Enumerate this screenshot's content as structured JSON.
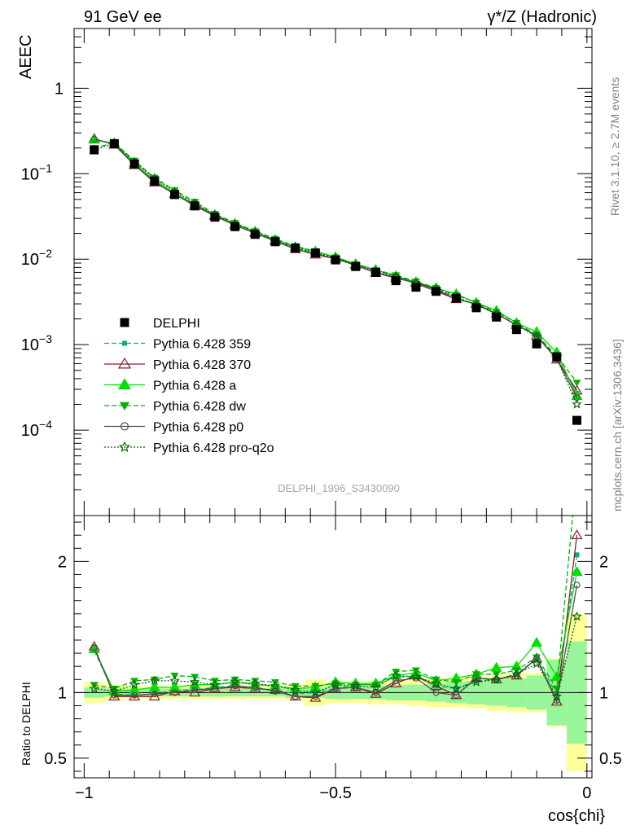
{
  "header": {
    "left": "91 GeV ee",
    "right": "γ*/Z (Hadronic)"
  },
  "side": {
    "upper": "Rivet 3.1.10, ≥ 2.7M events",
    "lower": "mcplots.cern.ch [arXiv:1306.3436]"
  },
  "analysis_label": "DELPHI_1996_S3430090",
  "chart_data": [
    {
      "type": "line",
      "panel": "main",
      "ylabel": "AEEC",
      "yscale": "log",
      "xlim": [
        -1.02,
        0.01
      ],
      "ylim": [
        1e-05,
        5
      ],
      "y_ticks": [
        "10^-4",
        "10^-3",
        "10^-2",
        "10^-1",
        "1"
      ],
      "legend_position": "left-middle",
      "x": [
        -0.98,
        -0.94,
        -0.9,
        -0.86,
        -0.82,
        -0.78,
        -0.74,
        -0.7,
        -0.66,
        -0.62,
        -0.58,
        -0.54,
        -0.5,
        -0.46,
        -0.42,
        -0.38,
        -0.34,
        -0.3,
        -0.26,
        -0.22,
        -0.18,
        -0.14,
        -0.1,
        -0.06,
        -0.02
      ],
      "data": {
        "name": "DELPHI",
        "values": [
          0.19,
          0.225,
          0.13,
          0.082,
          0.057,
          0.042,
          0.031,
          0.024,
          0.0195,
          0.016,
          0.0135,
          0.0118,
          0.0098,
          0.0082,
          0.007,
          0.0056,
          0.0047,
          0.0042,
          0.0035,
          0.0027,
          0.0021,
          0.0015,
          0.00102,
          0.00072,
          0.00013
        ]
      },
      "series": [
        {
          "name": "Pythia 6.428 359",
          "color": "#00b27a",
          "dash": "6,3",
          "marker": "square-small",
          "values": [
            0.25,
            0.225,
            0.128,
            0.081,
            0.058,
            0.043,
            0.032,
            0.025,
            0.02,
            0.0163,
            0.0134,
            0.0118,
            0.0101,
            0.0087,
            0.0074,
            0.0063,
            0.0053,
            0.0044,
            0.0036,
            0.0029,
            0.0023,
            0.0017,
            0.0013,
            0.0007,
            0.00027
          ]
        },
        {
          "name": "Pythia 6.428 370",
          "color": "#8b1c2c",
          "dash": "",
          "marker": "triangle-open",
          "values": [
            0.257,
            0.218,
            0.126,
            0.079,
            0.058,
            0.042,
            0.032,
            0.025,
            0.0202,
            0.0163,
            0.0131,
            0.0113,
            0.0101,
            0.0085,
            0.0069,
            0.006,
            0.0053,
            0.0044,
            0.0034,
            0.003,
            0.0023,
            0.0017,
            0.00128,
            0.00067,
            0.00029
          ]
        },
        {
          "name": "Pythia 6.428 a",
          "color": "#00e000",
          "dash": "",
          "marker": "triangle-up",
          "values": [
            0.25,
            0.228,
            0.133,
            0.085,
            0.059,
            0.044,
            0.033,
            0.026,
            0.021,
            0.0168,
            0.0139,
            0.0123,
            0.0106,
            0.0088,
            0.0075,
            0.0063,
            0.0054,
            0.0046,
            0.0039,
            0.0031,
            0.0025,
            0.0018,
            0.00141,
            0.00081,
            0.00025
          ]
        },
        {
          "name": "Pythia 6.428 dw",
          "color": "#00b000",
          "dash": "6,3",
          "marker": "triangle-down",
          "values": [
            0.2,
            0.23,
            0.142,
            0.09,
            0.064,
            0.047,
            0.034,
            0.0265,
            0.0213,
            0.0173,
            0.0142,
            0.0124,
            0.0105,
            0.0087,
            0.0075,
            0.0065,
            0.0055,
            0.0046,
            0.0038,
            0.0031,
            0.0024,
            0.0018,
            0.0013,
            0.00074,
            0.00036
          ]
        },
        {
          "name": "Pythia 6.428 p0",
          "color": "#505050",
          "dash": "",
          "marker": "circle-open",
          "values": [
            0.253,
            0.22,
            0.127,
            0.081,
            0.057,
            0.043,
            0.032,
            0.025,
            0.0202,
            0.0162,
            0.0131,
            0.0115,
            0.0101,
            0.0085,
            0.007,
            0.0061,
            0.0052,
            0.0042,
            0.0034,
            0.003,
            0.0023,
            0.0017,
            0.00128,
            0.00068,
            0.00024
          ]
        },
        {
          "name": "Pythia 6.428 pro-q2o",
          "color": "#006400",
          "dash": "2,2",
          "marker": "star",
          "values": [
            0.19,
            0.225,
            0.138,
            0.089,
            0.062,
            0.045,
            0.033,
            0.026,
            0.0208,
            0.0168,
            0.0137,
            0.0118,
            0.0104,
            0.0086,
            0.0073,
            0.0063,
            0.0053,
            0.0045,
            0.0036,
            0.0029,
            0.0023,
            0.0017,
            0.00124,
            0.00069,
            0.0002
          ]
        }
      ]
    },
    {
      "type": "line",
      "panel": "ratio",
      "ylabel": "Ratio to DELPHI",
      "xlabel": "cos{chi}",
      "xlim": [
        -1.02,
        0.01
      ],
      "ylim": [
        0.35,
        2.35
      ],
      "x_ticks": [
        -1,
        -0.5,
        0
      ],
      "x_tick_labels": [
        "−1",
        "−0.5",
        "0"
      ],
      "y_ticks": [
        0.5,
        1,
        2
      ],
      "y_tick_labels": [
        "0.5",
        "1",
        "2"
      ],
      "x": [
        -0.98,
        -0.94,
        -0.9,
        -0.86,
        -0.82,
        -0.78,
        -0.74,
        -0.7,
        -0.66,
        -0.62,
        -0.58,
        -0.54,
        -0.5,
        -0.46,
        -0.42,
        -0.38,
        -0.34,
        -0.3,
        -0.26,
        -0.22,
        -0.18,
        -0.14,
        -0.1,
        -0.06,
        -0.02
      ],
      "band_inner": [
        0.04,
        0.03,
        0.03,
        0.03,
        0.03,
        0.03,
        0.03,
        0.03,
        0.03,
        0.03,
        0.04,
        0.04,
        0.05,
        0.05,
        0.05,
        0.06,
        0.06,
        0.07,
        0.08,
        0.09,
        0.1,
        0.11,
        0.13,
        0.25,
        0.39
      ],
      "band_outer": [
        0.08,
        0.06,
        0.05,
        0.05,
        0.05,
        0.05,
        0.05,
        0.05,
        0.05,
        0.05,
        0.06,
        0.1,
        0.08,
        0.08,
        0.09,
        0.09,
        0.1,
        0.11,
        0.11,
        0.12,
        0.14,
        0.15,
        0.15,
        0.26,
        0.6
      ],
      "series": [
        {
          "name": "Pythia 6.428 359",
          "values": [
            1.32,
            0.99,
            0.98,
            0.99,
            1.02,
            1.02,
            1.04,
            1.05,
            1.03,
            1.02,
            0.99,
            1.0,
            1.03,
            1.06,
            1.06,
            1.12,
            1.12,
            1.05,
            1.03,
            1.09,
            1.1,
            1.14,
            1.26,
            0.99,
            2.05
          ]
        },
        {
          "name": "Pythia 6.428 370",
          "values": [
            1.35,
            0.97,
            0.97,
            0.97,
            1.01,
            1.0,
            1.03,
            1.04,
            1.03,
            1.02,
            0.97,
            0.96,
            1.03,
            1.04,
            0.99,
            1.07,
            1.13,
            1.05,
            0.98,
            1.11,
            1.1,
            1.13,
            1.26,
            0.93,
            2.2
          ]
        },
        {
          "name": "Pythia 6.428 a",
          "values": [
            1.33,
            1.01,
            1.02,
            1.04,
            1.04,
            1.06,
            1.06,
            1.08,
            1.06,
            1.05,
            1.03,
            1.04,
            1.08,
            1.07,
            1.07,
            1.13,
            1.15,
            1.09,
            1.11,
            1.14,
            1.19,
            1.2,
            1.38,
            1.12,
            1.92
          ]
        },
        {
          "name": "Pythia 6.428 dw",
          "values": [
            1.06,
            1.03,
            1.09,
            1.1,
            1.13,
            1.12,
            1.09,
            1.1,
            1.09,
            1.08,
            1.05,
            1.05,
            1.07,
            1.06,
            1.06,
            1.16,
            1.17,
            1.1,
            1.08,
            1.14,
            1.14,
            1.17,
            1.27,
            1.03,
            2.7
          ]
        },
        {
          "name": "Pythia 6.428 p0",
          "values": [
            1.34,
            0.98,
            0.98,
            0.99,
            1.0,
            1.02,
            1.03,
            1.05,
            1.04,
            1.01,
            0.97,
            0.97,
            1.03,
            1.04,
            1.0,
            1.09,
            1.11,
            1.0,
            0.98,
            1.11,
            1.1,
            1.13,
            1.26,
            0.94,
            1.82
          ]
        },
        {
          "name": "Pythia 6.428 pro-q2o",
          "values": [
            1.03,
            1.01,
            1.06,
            1.09,
            1.09,
            1.08,
            1.06,
            1.08,
            1.07,
            1.05,
            1.02,
            1.0,
            1.06,
            1.05,
            1.04,
            1.13,
            1.12,
            1.07,
            1.03,
            1.08,
            1.1,
            1.14,
            1.22,
            0.97,
            1.58
          ]
        }
      ]
    }
  ]
}
